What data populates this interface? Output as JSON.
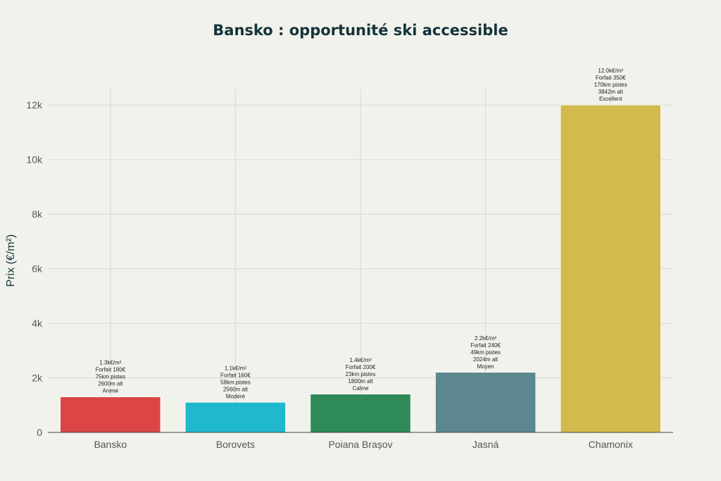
{
  "chart_data": {
    "type": "bar",
    "title": "Bansko : opportunité ski accessible",
    "xlabel": "",
    "ylabel": "Prix (€/m²)",
    "ylim": [
      0,
      12600
    ],
    "yticks": [
      0,
      2000,
      4000,
      6000,
      8000,
      10000,
      12000
    ],
    "ytick_labels": [
      "0",
      "2k",
      "4k",
      "6k",
      "8k",
      "10k",
      "12k"
    ],
    "grid": true,
    "categories": [
      "Bansko",
      "Borovets",
      "Poiana Brașov",
      "Jasná",
      "Chamonix"
    ],
    "values": [
      1300,
      1100,
      1400,
      2200,
      12000
    ],
    "colors": [
      "#db4545",
      "#1fb8cd",
      "#2e8b57",
      "#5d878f",
      "#d2ba4c"
    ],
    "annotations": [
      [
        "1.3k€/m²",
        "Forfait 180€",
        "75km pistes",
        "2600m alt",
        "Animé"
      ],
      [
        "1.1k€/m²",
        "Forfait 160€",
        "58km pistes",
        "2560m alt",
        "Modéré"
      ],
      [
        "1.4k€/m²",
        "Forfait 200€",
        "23km pistes",
        "1800m alt",
        "Calme"
      ],
      [
        "2.2k€/m²",
        "Forfait 240€",
        "49km pistes",
        "2024m alt",
        "Moyen"
      ],
      [
        "12.0k€/m²",
        "Forfait 350€",
        "170km pistes",
        "3842m alt",
        "Excellent"
      ]
    ]
  }
}
